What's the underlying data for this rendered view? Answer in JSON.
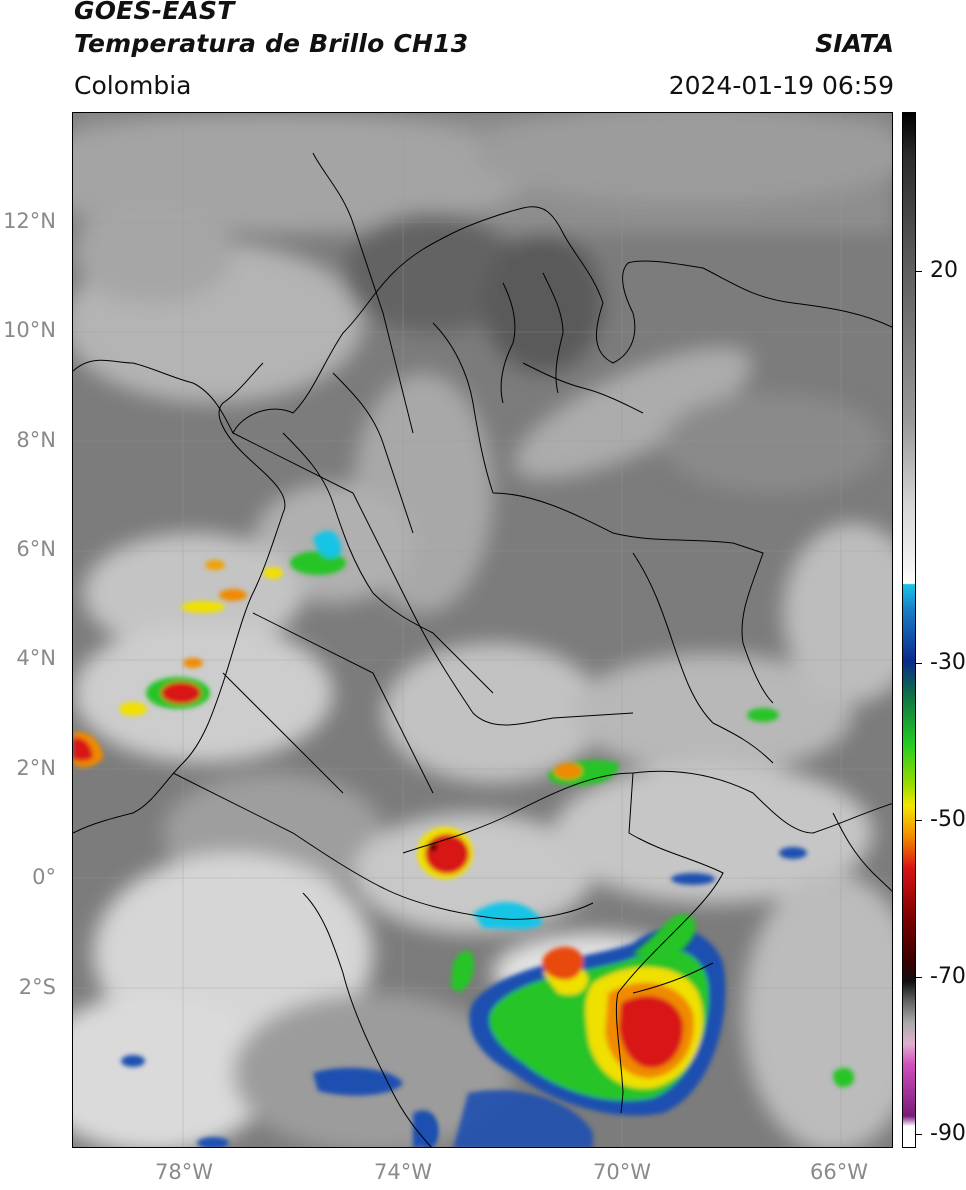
{
  "header": {
    "satellite": "GOES-EAST",
    "product": "Temperatura de Brillo CH13",
    "organization": "SIATA",
    "region": "Colombia",
    "datetime": "2024-01-19 06:59"
  },
  "map": {
    "lat_labels": [
      "12°N",
      "10°N",
      "8°N",
      "6°N",
      "4°N",
      "2°N",
      "0°",
      "2°S"
    ],
    "lon_labels": [
      "78°W",
      "74°W",
      "70°W",
      "66°W"
    ],
    "extent": {
      "lon_min": -80,
      "lon_max": -65,
      "lat_min": -4.8,
      "lat_max": 14.2
    }
  },
  "colorbar": {
    "tick_labels": [
      "20",
      "-30",
      "-50",
      "-70",
      "-90"
    ],
    "range": [
      -92,
      43
    ],
    "colors": {
      "warm_gray": "#5a5a5a",
      "cold_white": "#f4f4f4",
      "cyan": "#19c4e6",
      "blue": "#0a2a8c",
      "green": "#22cc22",
      "yellow": "#f2e600",
      "orange": "#f28a00",
      "red": "#d81414",
      "dark_red": "#3a0000",
      "magenta": "#d050c0"
    }
  }
}
